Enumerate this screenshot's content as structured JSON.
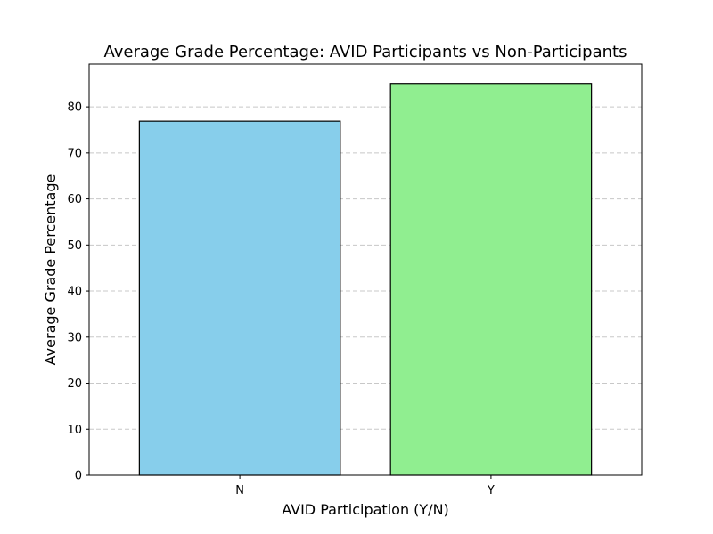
{
  "chart_data": {
    "type": "bar",
    "title": "Average Grade Percentage: AVID Participants vs Non-Participants",
    "xlabel": "AVID Participation (Y/N)",
    "ylabel": "Average Grade Percentage",
    "categories": [
      "N",
      "Y"
    ],
    "values": [
      76.9,
      85.1
    ],
    "colors": [
      "#87ceeb",
      "#90ee90"
    ],
    "edge_color": "#000000",
    "ylim": [
      0,
      89.3
    ],
    "yticks": [
      0,
      10,
      20,
      30,
      40,
      50,
      60,
      70,
      80
    ],
    "grid": {
      "axis": "y",
      "style": "dashed",
      "color": "#c8c8c8"
    },
    "legend": false
  }
}
